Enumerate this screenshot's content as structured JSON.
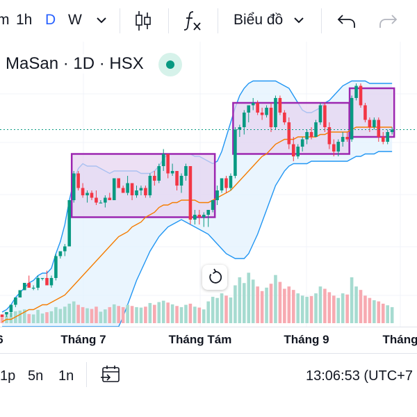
{
  "toolbar": {
    "interval_m": "m",
    "interval_1h": "1h",
    "interval_d": "D",
    "interval_w": "W",
    "chart_type_label": "Biểu đồ",
    "icons": [
      "chevron-down-icon",
      "candles-icon",
      "indicators-fx-icon",
      "chevron-down-icon",
      "undo-icon",
      "redo-icon"
    ],
    "active_color": "#2962ff",
    "disabled_color": "#b2b5be"
  },
  "legend": {
    "title": "MaSan · 1D · HSX",
    "status_color": "#089981"
  },
  "time_axis": {
    "ticks": [
      "6",
      "Tháng 7",
      "Tháng Tám",
      "Tháng 9",
      "Tháng"
    ]
  },
  "bottom_bar": {
    "range_1p": "1p",
    "range_5n": "5n",
    "range_1n": "1n",
    "clock": "13:06:53 (UTC+7"
  },
  "colors": {
    "up": "#089981",
    "down": "#f23645",
    "vol_up": "#a6dbd0",
    "vol_down": "#f7aab1",
    "bb_line": "#2196f3",
    "bb_fill": "#e3f2fd",
    "ma": "#f57c00",
    "box_border": "#9c27b0",
    "box_fill": "#e6d3f0",
    "price_line": "#089981"
  },
  "chart_data": {
    "type": "candlestick",
    "title": "",
    "xlabel": "",
    "ylabel": "",
    "x_ticks": [
      "6",
      "Tháng 7",
      "Tháng Tám",
      "Tháng 9",
      "Tháng"
    ],
    "notes": "Price scale is not printed in the screenshot; values are in relative price units (0-100 = visible range).",
    "ylim": [
      0,
      100
    ],
    "candles": [
      [
        5,
        5,
        5,
        4
      ],
      [
        5,
        6,
        4,
        6
      ],
      [
        6,
        9,
        4,
        9
      ],
      [
        9,
        12,
        8,
        12
      ],
      [
        12,
        15,
        12,
        15
      ],
      [
        15,
        18,
        15,
        18
      ],
      [
        18,
        21,
        16,
        16
      ],
      [
        16,
        17,
        15,
        16
      ],
      [
        16,
        21,
        15,
        20
      ],
      [
        20,
        20,
        19,
        20
      ],
      [
        20,
        23,
        17,
        17
      ],
      [
        17,
        21,
        16,
        20
      ],
      [
        20,
        30,
        19,
        29
      ],
      [
        29,
        31,
        28,
        31
      ],
      [
        31,
        34,
        29,
        33
      ],
      [
        33,
        52,
        33,
        52
      ],
      [
        52,
        64,
        51,
        63
      ],
      [
        63,
        64,
        56,
        57
      ],
      [
        57,
        59,
        53,
        54
      ],
      [
        54,
        56,
        51,
        55
      ],
      [
        55,
        56,
        52,
        53
      ],
      [
        53,
        56,
        50,
        51
      ],
      [
        51,
        52,
        51,
        51
      ],
      [
        51,
        54,
        49,
        53
      ],
      [
        53,
        55,
        52,
        52
      ],
      [
        52,
        61,
        52,
        61
      ],
      [
        61,
        61,
        57,
        57
      ],
      [
        57,
        58,
        55,
        55
      ],
      [
        55,
        62,
        54,
        59
      ],
      [
        59,
        59,
        52,
        54
      ],
      [
        54,
        58,
        53,
        56
      ],
      [
        56,
        58,
        54,
        57
      ],
      [
        57,
        58,
        53,
        54
      ],
      [
        54,
        63,
        53,
        62
      ],
      [
        62,
        64,
        58,
        60
      ],
      [
        60,
        67,
        59,
        66
      ],
      [
        66,
        73,
        64,
        71
      ],
      [
        71,
        71,
        61,
        63
      ],
      [
        63,
        67,
        62,
        64
      ],
      [
        64,
        64,
        56,
        58
      ],
      [
        58,
        63,
        55,
        62
      ],
      [
        62,
        67,
        60,
        66
      ],
      [
        66,
        66,
        42,
        44
      ],
      [
        44,
        48,
        42,
        46
      ],
      [
        46,
        48,
        42,
        45
      ],
      [
        45,
        47,
        41,
        46
      ],
      [
        46,
        48,
        41,
        48
      ],
      [
        48,
        52,
        47,
        52
      ],
      [
        52,
        58,
        50,
        56
      ],
      [
        56,
        61,
        55,
        61
      ],
      [
        61,
        62,
        55,
        57
      ],
      [
        57,
        63,
        56,
        62
      ],
      [
        62,
        82,
        61,
        81
      ],
      [
        81,
        83,
        78,
        82
      ],
      [
        82,
        89,
        79,
        88
      ],
      [
        88,
        91,
        84,
        91
      ],
      [
        91,
        94,
        89,
        92
      ],
      [
        92,
        93,
        87,
        88
      ],
      [
        88,
        90,
        85,
        87
      ],
      [
        87,
        91,
        86,
        90
      ],
      [
        90,
        92,
        80,
        82
      ],
      [
        82,
        95,
        81,
        94
      ],
      [
        94,
        95,
        87,
        88
      ],
      [
        88,
        89,
        83,
        84
      ],
      [
        84,
        86,
        73,
        75
      ],
      [
        75,
        78,
        68,
        70
      ],
      [
        70,
        75,
        69,
        74
      ],
      [
        74,
        78,
        72,
        77
      ],
      [
        77,
        81,
        75,
        80
      ],
      [
        80,
        82,
        77,
        78
      ],
      [
        78,
        85,
        78,
        84
      ],
      [
        84,
        92,
        83,
        91
      ],
      [
        91,
        92,
        80,
        82
      ],
      [
        82,
        84,
        73,
        75
      ],
      [
        75,
        77,
        70,
        72
      ],
      [
        72,
        77,
        70,
        76
      ],
      [
        76,
        80,
        74,
        78
      ],
      [
        78,
        80,
        76,
        77
      ],
      [
        77,
        95,
        76,
        94
      ],
      [
        94,
        100,
        93,
        99
      ],
      [
        99,
        100,
        90,
        91
      ],
      [
        91,
        92,
        84,
        85
      ],
      [
        85,
        86,
        80,
        82
      ],
      [
        82,
        86,
        81,
        85
      ],
      [
        85,
        86,
        76,
        78
      ],
      [
        78,
        80,
        75,
        76
      ],
      [
        76,
        81,
        75,
        80
      ],
      [
        80,
        82,
        79,
        81
      ]
    ],
    "volumes": [
      30,
      35,
      45,
      52,
      55,
      60,
      40,
      38,
      58,
      42,
      48,
      52,
      70,
      62,
      72,
      85,
      95,
      80,
      70,
      65,
      62,
      72,
      50,
      60,
      70,
      82,
      75,
      70,
      80,
      75,
      70,
      68,
      72,
      88,
      80,
      92,
      98,
      90,
      82,
      75,
      70,
      80,
      85,
      72,
      68,
      60,
      95,
      115,
      110,
      130,
      120,
      112,
      165,
      200,
      175,
      220,
      190,
      160,
      140,
      155,
      172,
      210,
      180,
      150,
      160,
      145,
      130,
      120,
      115,
      118,
      130,
      160,
      150,
      135,
      120,
      110,
      130,
      125,
      200,
      160,
      145,
      120,
      110,
      100,
      95,
      85,
      78,
      70
    ],
    "ma20": [
      2,
      3,
      3,
      4,
      5,
      6,
      7,
      7,
      8,
      9,
      9,
      10,
      11,
      12,
      13,
      15,
      17,
      19,
      21,
      23,
      25,
      27,
      29,
      31,
      33,
      35,
      37,
      38,
      39,
      41,
      42,
      43,
      45,
      46,
      47,
      49,
      50,
      50,
      51,
      51,
      52,
      52,
      52,
      52,
      51,
      51,
      51,
      52,
      53,
      54,
      55,
      56,
      58,
      60,
      62,
      64,
      66,
      68,
      70,
      71,
      73,
      75,
      76,
      77,
      77,
      77,
      78,
      78,
      78,
      78,
      78,
      79,
      79,
      80,
      80,
      80,
      80,
      80,
      81,
      82,
      82,
      82,
      82,
      82,
      82,
      82,
      82,
      82
    ],
    "bb_upper": [
      6,
      7,
      9,
      12,
      14,
      16,
      18,
      19,
      21,
      22,
      22,
      24,
      30,
      35,
      42,
      52,
      60,
      65,
      67,
      66,
      66,
      66,
      65,
      64,
      63,
      64,
      64,
      64,
      64,
      64,
      64,
      63,
      63,
      63,
      64,
      66,
      69,
      71,
      71,
      71,
      71,
      71,
      71,
      70,
      70,
      69,
      68,
      67,
      68,
      72,
      78,
      84,
      90,
      95,
      98,
      100,
      101,
      101,
      101,
      101,
      101,
      101,
      100,
      99,
      98,
      95,
      92,
      89,
      88,
      88,
      89,
      90,
      92,
      93,
      95,
      97,
      99,
      100,
      101,
      101,
      101,
      101,
      100,
      100,
      100,
      100,
      100,
      100
    ],
    "bb_lower": [
      0,
      0,
      0,
      0,
      0,
      0,
      0,
      0,
      0,
      0,
      0,
      0,
      0,
      0,
      0,
      0,
      0,
      0,
      0,
      0,
      0,
      0,
      0,
      0,
      0,
      0,
      0,
      4,
      9,
      14,
      19,
      23,
      27,
      31,
      34,
      37,
      39,
      41,
      42,
      43,
      44,
      43,
      42,
      41,
      40,
      39,
      38,
      36,
      34,
      32,
      30,
      29,
      28,
      28,
      28,
      30,
      34,
      38,
      43,
      48,
      53,
      58,
      61,
      64,
      66,
      67,
      67,
      67,
      67,
      68,
      68,
      68,
      68,
      68,
      68,
      68,
      68,
      68,
      69,
      70,
      70,
      71,
      71,
      71,
      72,
      72,
      72,
      72
    ],
    "boxes": [
      {
        "from": 16,
        "to": 47,
        "low": 45,
        "high": 71
      },
      {
        "from": 52,
        "to": 77,
        "low": 71,
        "high": 92
      },
      {
        "from": 78,
        "to": 87,
        "low": 78,
        "high": 98
      }
    ],
    "last_price": 81
  }
}
